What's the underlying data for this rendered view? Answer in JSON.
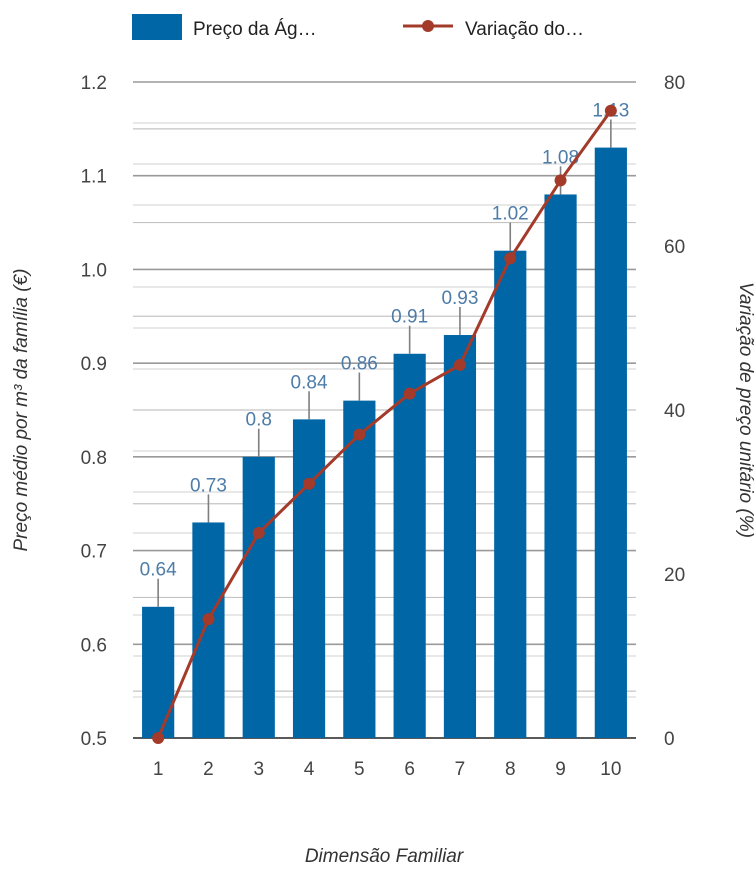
{
  "chart_data": {
    "type": "bar",
    "categories": [
      "1",
      "2",
      "3",
      "4",
      "5",
      "6",
      "7",
      "8",
      "9",
      "10"
    ],
    "series": [
      {
        "name": "Preço da Ág…",
        "type": "bar",
        "axis": "left",
        "values": [
          0.64,
          0.73,
          0.8,
          0.84,
          0.86,
          0.91,
          0.93,
          1.02,
          1.08,
          1.13
        ],
        "labels": [
          "0.64",
          "0.73",
          "0.8",
          "0.84",
          "0.86",
          "0.91",
          "0.93",
          "1.02",
          "1.08",
          "1.13"
        ],
        "error_up": [
          0.03,
          0.03,
          0.03,
          0.03,
          0.03,
          0.03,
          0.03,
          0.03,
          0.03,
          0.03
        ],
        "color": "#0066a6"
      },
      {
        "name": "Variação do…",
        "type": "line",
        "axis": "right",
        "values": [
          0,
          14.5,
          25,
          31,
          37,
          42,
          45.5,
          58.5,
          68,
          76.5
        ],
        "color": "#a33a2a"
      }
    ],
    "xlabel": "Dimensão Familiar",
    "ylabel": "Preço médio por m³ da família (€)",
    "y2label": "Variação de preço unitário (%)",
    "ylim": [
      0.5,
      1.2
    ],
    "y2lim": [
      0,
      80
    ],
    "yticks": [
      "0.5",
      "0.6",
      "0.7",
      "0.8",
      "0.9",
      "1.0",
      "1.1",
      "1.2"
    ],
    "y2ticks": [
      "0",
      "20",
      "40",
      "60",
      "80"
    ],
    "grid": true,
    "legend": "top"
  }
}
